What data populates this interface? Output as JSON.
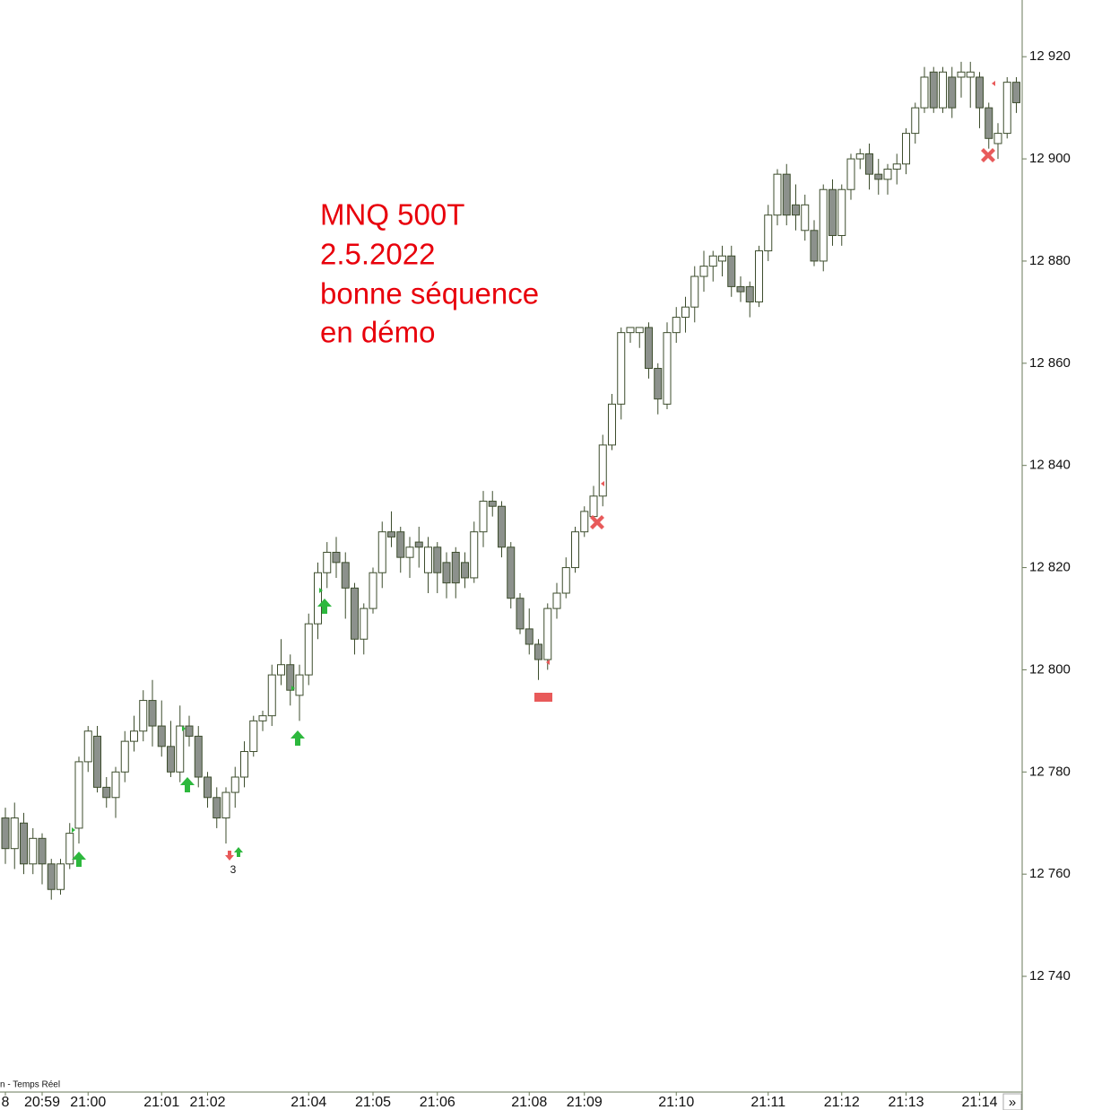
{
  "chart_data": {
    "type": "candlestick",
    "title_lines": [
      "MNQ 500T",
      "2.5.2022",
      "bonne séquence",
      "en démo"
    ],
    "annotations": [
      "3"
    ],
    "categories": [
      "8",
      null,
      null,
      null,
      "20:59",
      null,
      null,
      null,
      null,
      "21:00",
      null,
      null,
      null,
      null,
      null,
      null,
      null,
      "21:01",
      null,
      null,
      null,
      null,
      "21:02",
      null,
      null,
      null,
      null,
      null,
      null,
      null,
      null,
      null,
      null,
      "21:04",
      null,
      null,
      null,
      null,
      null,
      null,
      "21:05",
      null,
      null,
      null,
      null,
      null,
      null,
      "21:06",
      null,
      null,
      null,
      null,
      null,
      null,
      null,
      null,
      null,
      "21:08",
      null,
      null,
      null,
      null,
      null,
      "21:09",
      null,
      null,
      null,
      null,
      null,
      null,
      null,
      null,
      null,
      "21:10",
      null,
      null,
      null,
      null,
      null,
      null,
      null,
      null,
      null,
      "21:11",
      null,
      null,
      null,
      null,
      null,
      null,
      null,
      "21:12",
      null,
      null,
      null,
      null,
      null,
      null,
      "21:13",
      null,
      null,
      null,
      null,
      null,
      null,
      null,
      "21:14",
      null,
      null,
      null,
      null
    ],
    "open": [
      12771,
      12765,
      12770,
      12762,
      12767,
      12762,
      12757,
      12762,
      12769,
      12782,
      12787,
      12777,
      12775,
      12780,
      12786,
      12788,
      12794,
      12789,
      12785,
      12780,
      12789,
      12787,
      12779,
      12775,
      12771,
      12776,
      12779,
      12784,
      12790,
      12791,
      12799,
      12801,
      12795,
      12799,
      12809,
      12819,
      12823,
      12821,
      12816,
      12806,
      12812,
      12819,
      12827,
      12827,
      12822,
      12825,
      12819,
      12824,
      12821,
      12823,
      12821,
      12818,
      12827,
      12833,
      12832,
      12824,
      12814,
      12808,
      12805,
      12802,
      12812,
      12815,
      12820,
      12827,
      12830,
      12834,
      12844,
      12852,
      12866,
      12866,
      12867,
      12859,
      12852,
      12866,
      12869,
      12871,
      12877,
      12879,
      12880,
      12881,
      12875,
      12875,
      12872,
      12882,
      12889,
      12897,
      12891,
      12886,
      12886,
      12880,
      12894,
      12885,
      12894,
      12900,
      12901,
      12897,
      12896,
      12898,
      12899,
      12905,
      12910,
      12917,
      12910,
      12916,
      12916,
      12916,
      12916,
      12910,
      12903,
      12905,
      12915
    ],
    "high": [
      12773,
      12774,
      12772,
      12769,
      12768,
      12763,
      12763,
      12770,
      12783,
      12789,
      12789,
      12779,
      12781,
      12788,
      12791,
      12796,
      12798,
      12794,
      12790,
      12793,
      12791,
      12789,
      12780,
      12777,
      12777,
      12781,
      12786,
      12791,
      12792,
      12801,
      12806,
      12803,
      12801,
      12811,
      12821,
      12825,
      12826,
      12823,
      12817,
      12813,
      12820,
      12829,
      12831,
      12828,
      12826,
      12828,
      12826,
      12825,
      12823,
      12824,
      12823,
      12829,
      12835,
      12835,
      12833,
      12825,
      12815,
      12812,
      12806,
      12813,
      12817,
      12822,
      12828,
      12832,
      12836,
      12846,
      12854,
      12867,
      12867,
      12867,
      12868,
      12860,
      12868,
      12871,
      12873,
      12879,
      12882,
      12882,
      12883,
      12883,
      12877,
      12876,
      12883,
      12891,
      12898,
      12899,
      12895,
      12893,
      12888,
      12895,
      12896,
      12895,
      12901,
      12902,
      12903,
      12900,
      12899,
      12901,
      12906,
      12911,
      12918,
      12918,
      12918,
      12918,
      12919,
      12919,
      12917,
      12911,
      12907,
      12916,
      12916
    ],
    "low": [
      12762,
      12761,
      12760,
      12760,
      12758,
      12755,
      12756,
      12761,
      12766,
      12780,
      12776,
      12773,
      12771,
      12778,
      12784,
      12786,
      12785,
      12783,
      12779,
      12778,
      12785,
      12777,
      12773,
      12769,
      12766,
      12773,
      12777,
      12783,
      12788,
      12789,
      12797,
      12793,
      12790,
      12797,
      12806,
      12816,
      12818,
      12810,
      12803,
      12803,
      12811,
      12816,
      12824,
      12819,
      12818,
      12820,
      12815,
      12815,
      12814,
      12814,
      12816,
      12817,
      12824,
      12830,
      12822,
      12812,
      12807,
      12803,
      12798,
      12800,
      12810,
      12814,
      12819,
      12826,
      12829,
      12832,
      12843,
      12849,
      12864,
      12863,
      12857,
      12850,
      12851,
      12864,
      12866,
      12868,
      12874,
      12876,
      12877,
      12873,
      12872,
      12869,
      12871,
      12880,
      12887,
      12887,
      12886,
      12884,
      12879,
      12878,
      12883,
      12883,
      12892,
      12898,
      12894,
      12893,
      12893,
      12895,
      12897,
      12903,
      12909,
      12909,
      12909,
      12908,
      12912,
      12910,
      12906,
      12902,
      12900,
      12904,
      12909
    ],
    "close": [
      12765,
      12771,
      12762,
      12767,
      12762,
      12757,
      12762,
      12768,
      12782,
      12788,
      12777,
      12775,
      12780,
      12786,
      12788,
      12794,
      12789,
      12785,
      12780,
      12789,
      12787,
      12779,
      12775,
      12771,
      12776,
      12779,
      12784,
      12790,
      12791,
      12799,
      12801,
      12796,
      12799,
      12809,
      12819,
      12823,
      12821,
      12816,
      12806,
      12812,
      12819,
      12827,
      12826,
      12822,
      12824,
      12824,
      12824,
      12819,
      12817,
      12817,
      12818,
      12827,
      12833,
      12832,
      12824,
      12814,
      12808,
      12805,
      12802,
      12812,
      12815,
      12820,
      12827,
      12831,
      12834,
      12844,
      12852,
      12866,
      12867,
      12867,
      12859,
      12853,
      12866,
      12869,
      12871,
      12877,
      12879,
      12881,
      12881,
      12875,
      12874,
      12872,
      12882,
      12889,
      12897,
      12889,
      12889,
      12891,
      12880,
      12894,
      12885,
      12894,
      12900,
      12901,
      12897,
      12896,
      12898,
      12899,
      12905,
      12910,
      12916,
      12910,
      12917,
      12910,
      12917,
      12917,
      12910,
      12904,
      12905,
      12915,
      12911
    ],
    "up_color": "#ffffff",
    "down_color": "#8c918c",
    "wick_color": "#3d4d2d",
    "ylim": [
      12717.7,
      12931.1
    ],
    "yticks": [
      {
        "value": 12740,
        "label": "12 740"
      },
      {
        "value": 12760,
        "label": "12 760"
      },
      {
        "value": 12780,
        "label": "12 780"
      },
      {
        "value": 12800,
        "label": "12 800"
      },
      {
        "value": 12820,
        "label": "12 820"
      },
      {
        "value": 12840,
        "label": "12 840"
      },
      {
        "value": 12860,
        "label": "12 860"
      },
      {
        "value": 12880,
        "label": "12 880"
      },
      {
        "value": 12900,
        "label": "12 900"
      },
      {
        "value": 12920,
        "label": "12 920"
      }
    ]
  },
  "status_text": "n - Temps Réel",
  "scroll_button": "»"
}
